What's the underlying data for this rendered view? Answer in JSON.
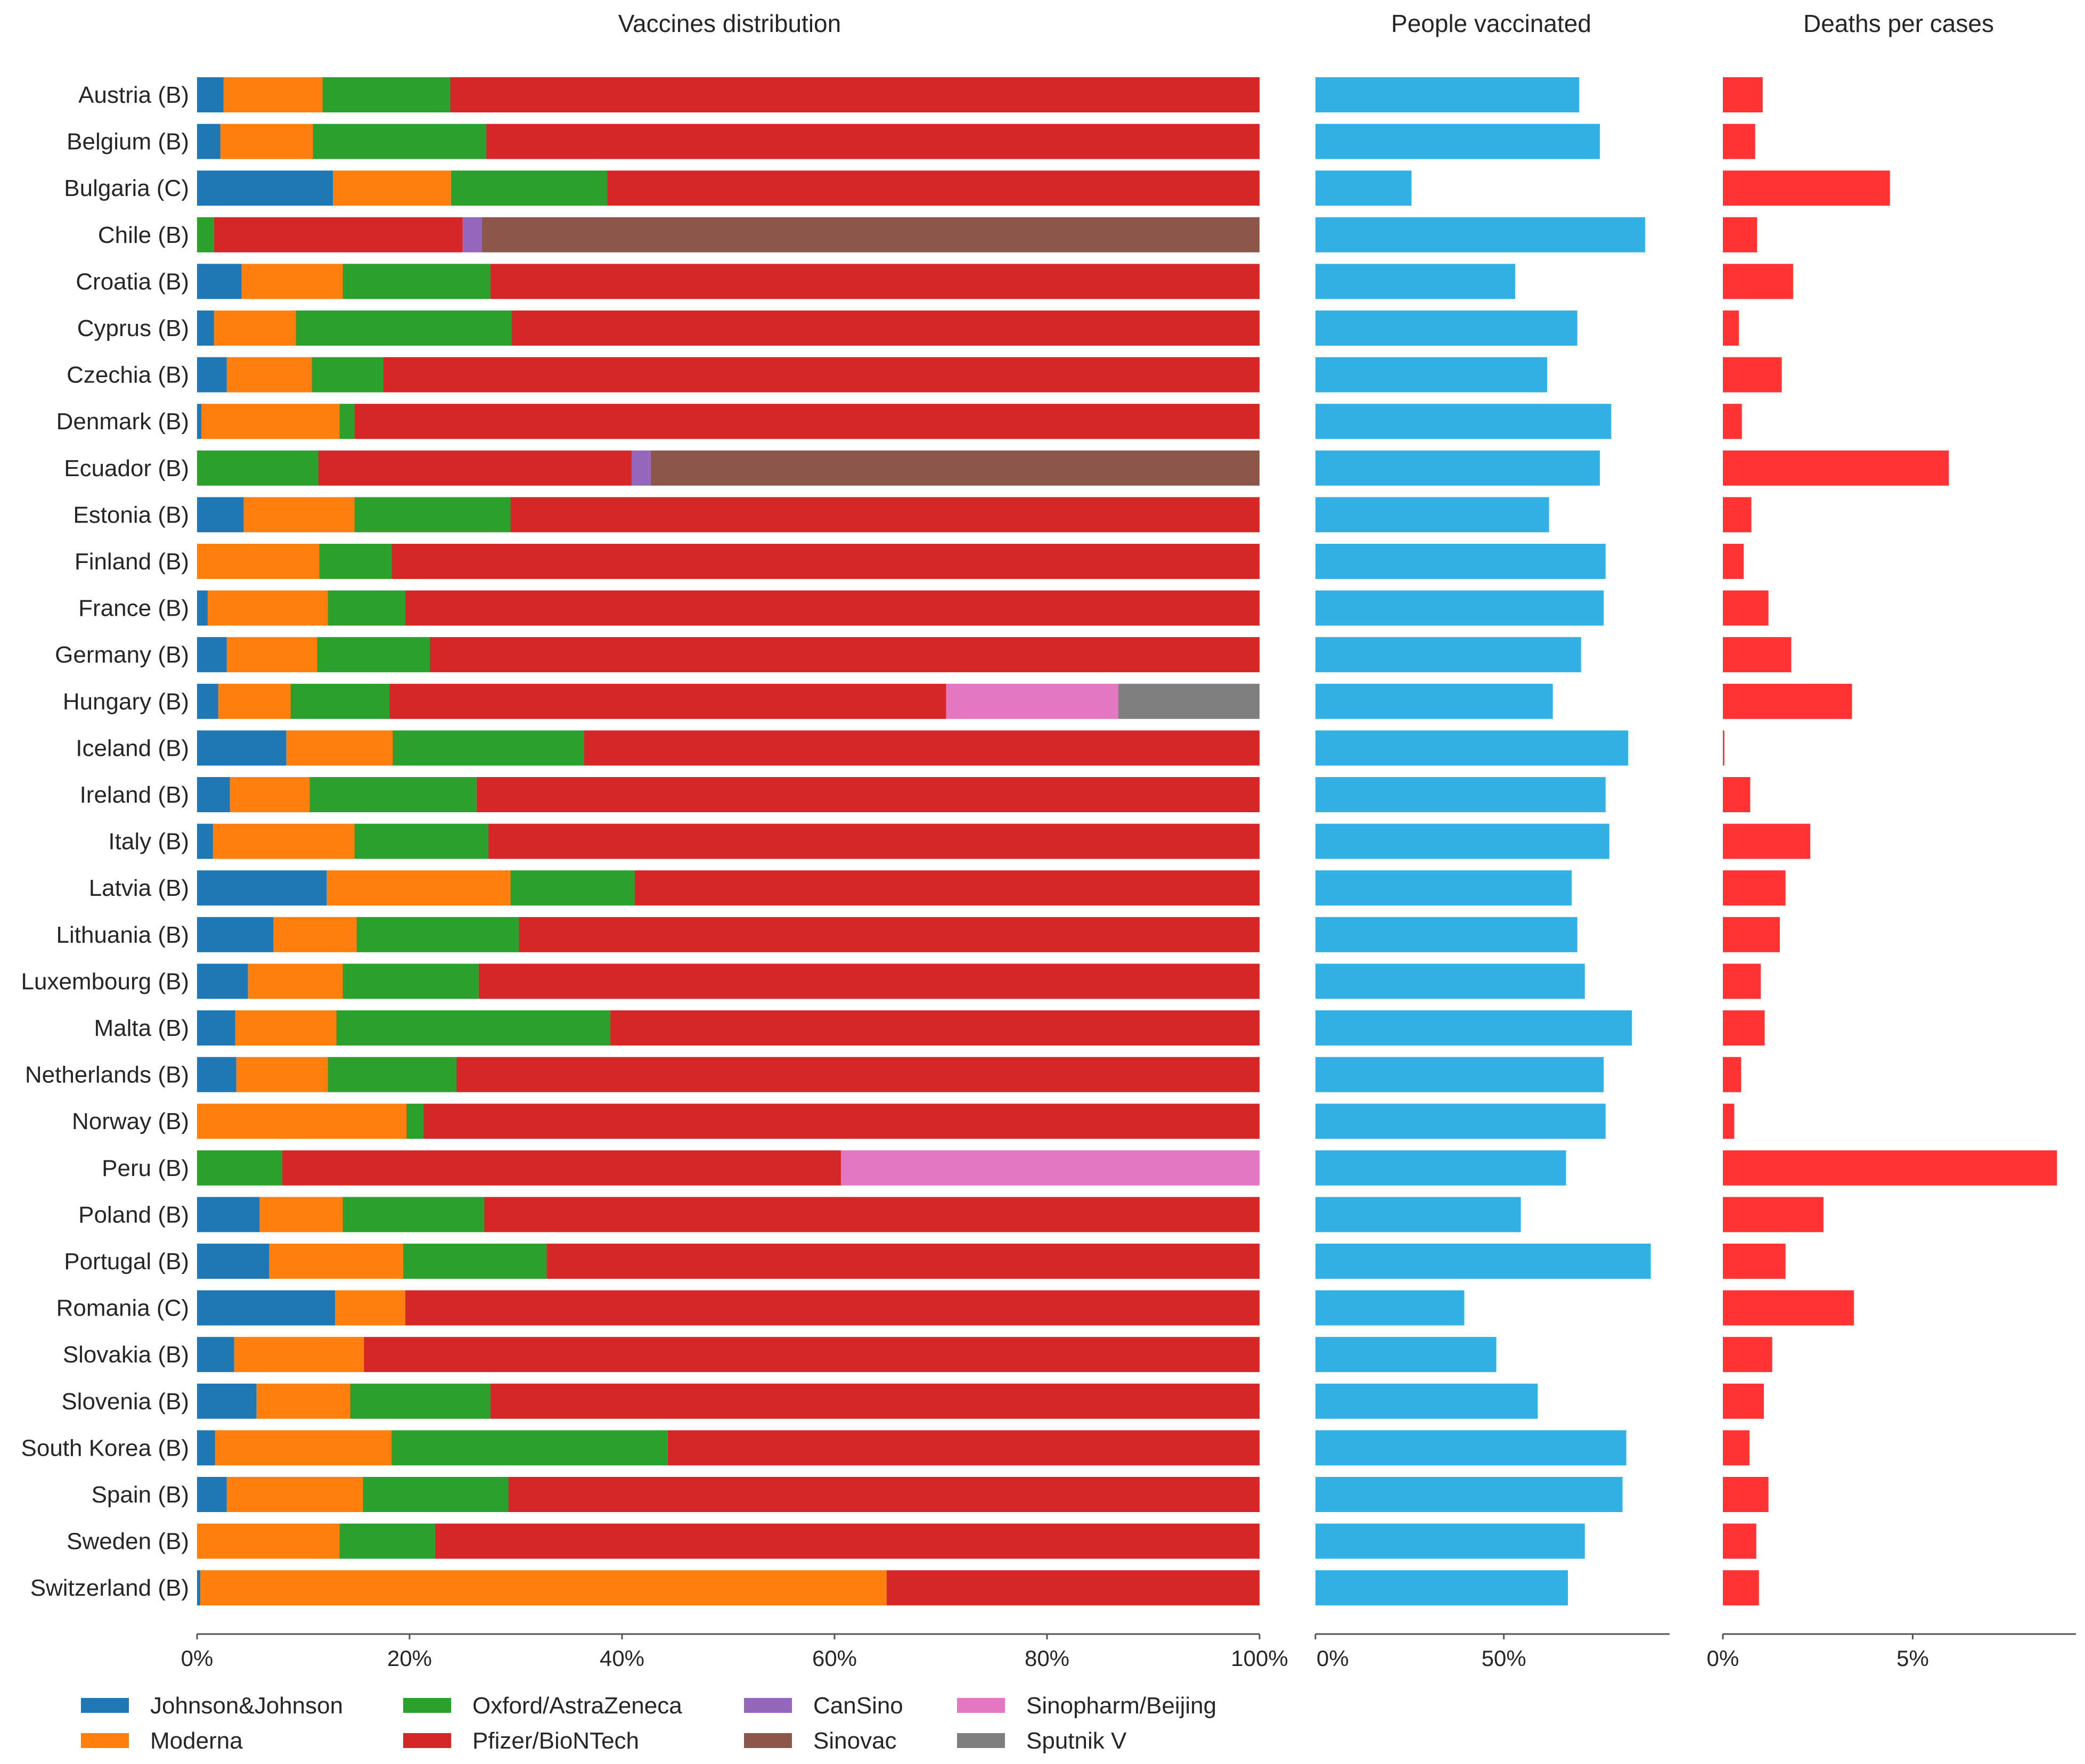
{
  "chart_data": [
    {
      "type": "bar",
      "orientation": "horizontal",
      "stacked": true,
      "title": "Vaccines distribution",
      "categories": [
        "Austria (B)",
        "Belgium (B)",
        "Bulgaria (C)",
        "Chile (B)",
        "Croatia (B)",
        "Cyprus (B)",
        "Czechia (B)",
        "Denmark (B)",
        "Ecuador (B)",
        "Estonia (B)",
        "Finland (B)",
        "France (B)",
        "Germany (B)",
        "Hungary (B)",
        "Iceland (B)",
        "Ireland (B)",
        "Italy (B)",
        "Latvia (B)",
        "Lithuania (B)",
        "Luxembourg (B)",
        "Malta (B)",
        "Netherlands (B)",
        "Norway (B)",
        "Peru (B)",
        "Poland (B)",
        "Portugal (B)",
        "Romania (C)",
        "Slovakia (B)",
        "Slovenia (B)",
        "South Korea (B)",
        "Spain (B)",
        "Sweden (B)",
        "Switzerland (B)"
      ],
      "series": [
        {
          "name": "Johnson&Johnson",
          "color": "#1f77b4",
          "values": [
            2.5,
            2.2,
            12.8,
            0,
            4.2,
            1.6,
            2.8,
            0.4,
            0,
            4.4,
            0,
            1.0,
            2.8,
            2.0,
            8.4,
            3.1,
            1.5,
            12.2,
            7.2,
            4.8,
            3.6,
            3.7,
            0,
            0,
            5.9,
            6.8,
            13.0,
            3.5,
            5.6,
            1.7,
            2.8,
            0,
            0.3
          ]
        },
        {
          "name": "Moderna",
          "color": "#ff7f0e",
          "values": [
            9.3,
            8.7,
            11.1,
            0,
            9.5,
            7.7,
            8.0,
            13.0,
            0,
            10.4,
            11.5,
            11.3,
            8.5,
            6.8,
            10.0,
            7.5,
            13.3,
            17.3,
            7.8,
            8.9,
            9.5,
            8.6,
            19.7,
            0,
            7.8,
            12.6,
            6.6,
            12.2,
            8.8,
            16.6,
            12.8,
            13.4,
            64.6
          ]
        },
        {
          "name": "Oxford/AstraZeneca",
          "color": "#2ca02c",
          "values": [
            12.0,
            16.3,
            14.7,
            1.6,
            13.9,
            20.3,
            6.7,
            1.4,
            11.4,
            14.7,
            6.8,
            7.3,
            10.6,
            9.3,
            18.0,
            15.7,
            12.6,
            11.7,
            15.3,
            12.8,
            25.8,
            12.1,
            1.6,
            8.0,
            13.3,
            13.5,
            0,
            0,
            13.2,
            26.0,
            13.7,
            9.0,
            0
          ]
        },
        {
          "name": "Pfizer/BioNTech",
          "color": "#d62728",
          "values": [
            76.2,
            72.8,
            61.4,
            23.4,
            72.4,
            70.4,
            82.5,
            85.2,
            29.5,
            70.5,
            81.7,
            80.4,
            78.1,
            52.4,
            63.6,
            73.7,
            72.6,
            58.8,
            69.7,
            73.5,
            61.1,
            75.6,
            78.7,
            52.6,
            73.0,
            67.1,
            80.4,
            84.3,
            72.4,
            55.7,
            70.7,
            77.6,
            35.1
          ]
        },
        {
          "name": "CanSino",
          "color": "#9467bd",
          "values": [
            0,
            0,
            0,
            1.8,
            0,
            0,
            0,
            0,
            1.8,
            0,
            0,
            0,
            0,
            0,
            0,
            0,
            0,
            0,
            0,
            0,
            0,
            0,
            0,
            0,
            0,
            0,
            0,
            0,
            0,
            0,
            0,
            0,
            0
          ]
        },
        {
          "name": "Sinovac",
          "color": "#8c564b",
          "values": [
            0,
            0,
            0,
            73.2,
            0,
            0,
            0,
            0,
            57.3,
            0,
            0,
            0,
            0,
            0,
            0,
            0,
            0,
            0,
            0,
            0,
            0,
            0,
            0,
            0,
            0,
            0,
            0,
            0,
            0,
            0,
            0,
            0,
            0
          ]
        },
        {
          "name": "Sinopharm/Beijing",
          "color": "#e377c2",
          "values": [
            0,
            0,
            0,
            0,
            0,
            0,
            0,
            0,
            0,
            0,
            0,
            0,
            0,
            16.2,
            0,
            0,
            0,
            0,
            0,
            0,
            0,
            0,
            0,
            39.4,
            0,
            0,
            0,
            0,
            0,
            0,
            0,
            0,
            0
          ]
        },
        {
          "name": "Sputnik V",
          "color": "#7f7f7f",
          "values": [
            0,
            0,
            0,
            0,
            0,
            0,
            0,
            0,
            0,
            0,
            0,
            0,
            0,
            13.3,
            0,
            0,
            0,
            0,
            0,
            0,
            0,
            0,
            0,
            0,
            0,
            0,
            0,
            0,
            0,
            0,
            0,
            0,
            0
          ]
        }
      ],
      "xlim": [
        0,
        100
      ],
      "xticks": [
        "0%",
        "20%",
        "40%",
        "60%",
        "80%",
        "100%"
      ],
      "legend_position": "bottom"
    },
    {
      "type": "bar",
      "orientation": "horizontal",
      "title": "People vaccinated",
      "color": "#33b0e3",
      "values": [
        70,
        75.5,
        25.5,
        87.5,
        53,
        69.5,
        61.5,
        78.5,
        75.5,
        62,
        77,
        76.5,
        70.5,
        63,
        83,
        77,
        78,
        68,
        69.5,
        71.5,
        84,
        76.5,
        77,
        66.5,
        54.5,
        89,
        39.5,
        48,
        59,
        82.5,
        81.5,
        71.5,
        67
      ],
      "xlim": [
        0,
        94
      ],
      "xticks": [
        "0%",
        "50%"
      ]
    },
    {
      "type": "bar",
      "orientation": "horizontal",
      "title": "Deaths per cases",
      "color": "#ff3333",
      "values": [
        1.05,
        0.85,
        4.4,
        0.9,
        1.85,
        0.42,
        1.55,
        0.5,
        5.95,
        0.75,
        0.55,
        1.2,
        1.8,
        3.4,
        0.04,
        0.72,
        2.3,
        1.65,
        1.5,
        1.0,
        1.1,
        0.48,
        0.3,
        8.8,
        2.65,
        1.65,
        3.45,
        1.3,
        1.08,
        0.7,
        1.2,
        0.88,
        0.95
      ],
      "xlim": [
        0,
        9.3
      ],
      "xticks": [
        "0%",
        "5%"
      ]
    }
  ]
}
